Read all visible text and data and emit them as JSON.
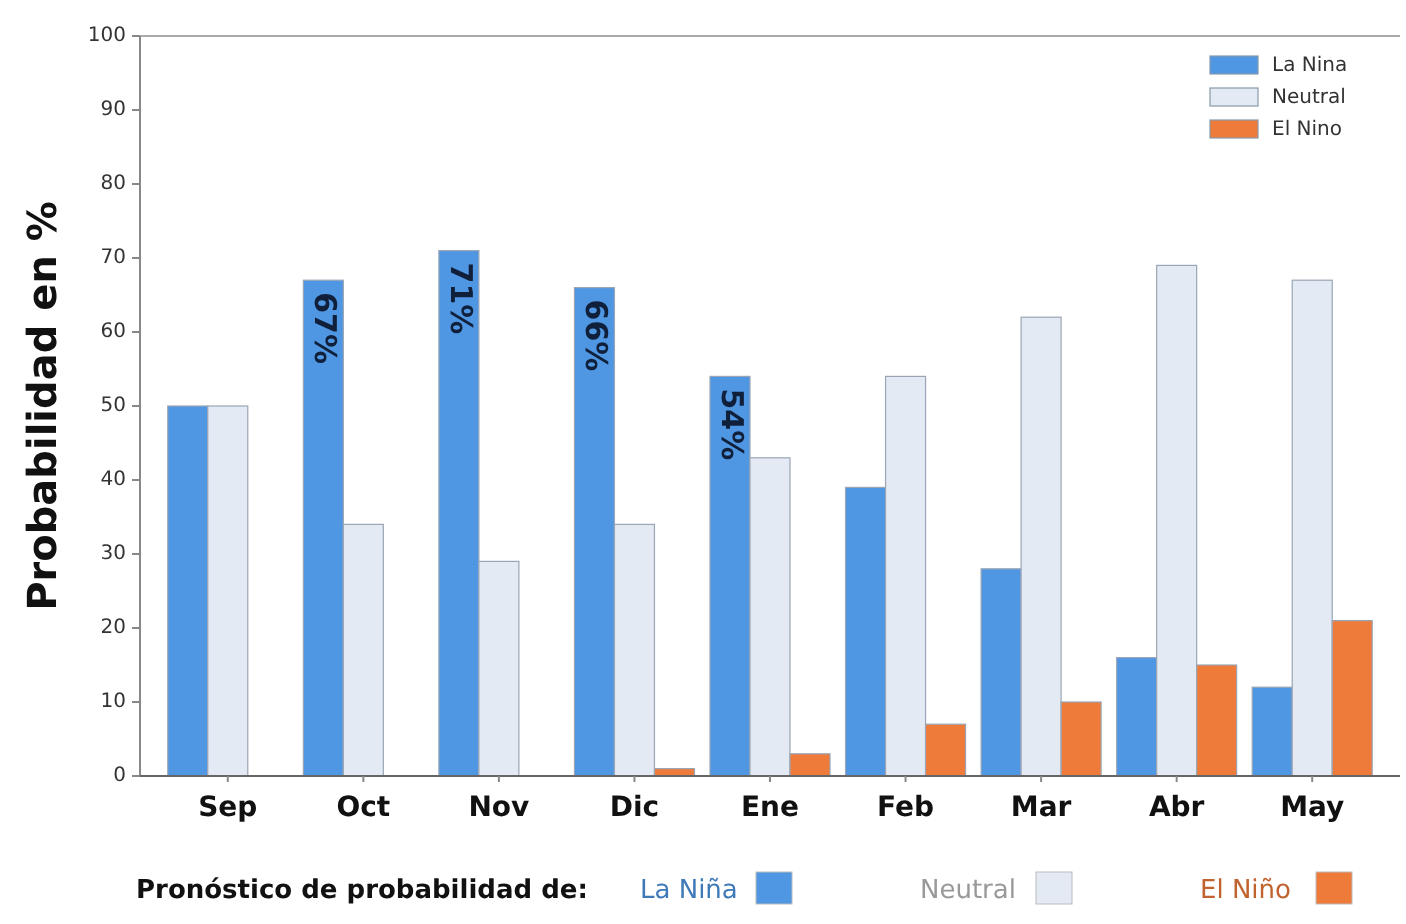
{
  "chart_data": {
    "type": "bar",
    "ylabel": "Probabilidad en %",
    "categories": [
      "Sep",
      "Oct",
      "Nov",
      "Dic",
      "Ene",
      "Feb",
      "Mar",
      "Abr",
      "May"
    ],
    "series": [
      {
        "name": "La Nina",
        "color": "#4f96e3",
        "values": [
          50,
          67,
          71,
          66,
          54,
          39,
          28,
          16,
          12
        ],
        "value_labels": [
          null,
          "67%",
          "71%",
          "66%",
          "54%",
          null,
          null,
          null,
          null
        ]
      },
      {
        "name": "Neutral",
        "color": "#e3eaf4",
        "values": [
          50,
          34,
          29,
          34,
          43,
          54,
          62,
          69,
          67
        ]
      },
      {
        "name": "El Nino",
        "color": "#ef7b3a",
        "values": [
          0,
          0,
          0,
          1,
          3,
          7,
          10,
          15,
          21
        ]
      }
    ],
    "ylim": [
      0,
      100
    ],
    "yticks": [
      0,
      10,
      20,
      30,
      40,
      50,
      60,
      70,
      80,
      90,
      100
    ],
    "grid": false,
    "legend": "top right",
    "annotations": [
      "Pronóstico de probabilidad de:",
      "La Niña",
      "Neutral",
      "El Niño"
    ]
  }
}
